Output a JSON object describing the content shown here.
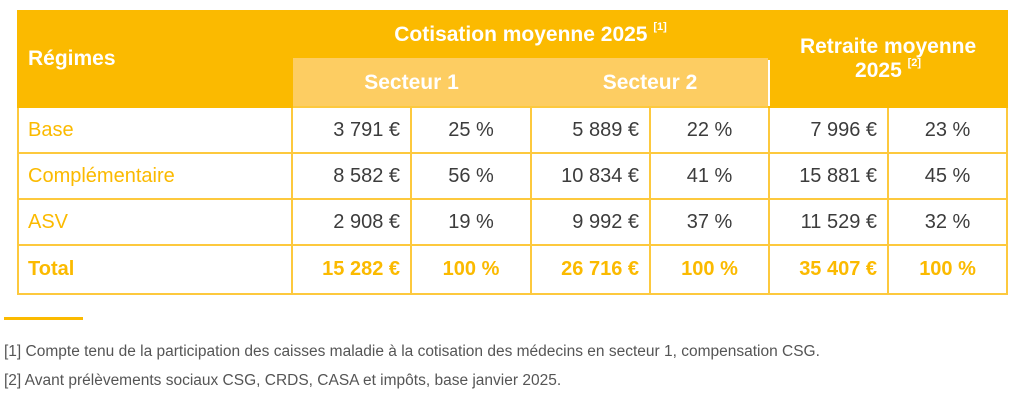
{
  "table": {
    "header": {
      "regimes": "Régimes",
      "cotisation": "Cotisation moyenne 2025",
      "cotisation_note": "[1]",
      "secteur1": "Secteur 1",
      "secteur2": "Secteur 2",
      "retraite_line1": "Retraite moyenne",
      "retraite_line2": "2025",
      "retraite_note": "[2]"
    },
    "rows": [
      {
        "label": "Base",
        "s1_amt": "3 791 €",
        "s1_pct": "25 %",
        "s2_amt": "5 889 €",
        "s2_pct": "22 %",
        "r_amt": "7 996 €",
        "r_pct": "23 %"
      },
      {
        "label": "Complémentaire",
        "s1_amt": "8 582 €",
        "s1_pct": "56 %",
        "s2_amt": "10 834 €",
        "s2_pct": "41 %",
        "r_amt": "15 881 €",
        "r_pct": "45 %"
      },
      {
        "label": "ASV",
        "s1_amt": "2 908 €",
        "s1_pct": "19 %",
        "s2_amt": "9 992 €",
        "s2_pct": "37 %",
        "r_amt": "11 529 €",
        "r_pct": "32 %"
      },
      {
        "label": "Total",
        "s1_amt": "15 282 €",
        "s1_pct": "100 %",
        "s2_amt": "26 716 €",
        "s2_pct": "100 %",
        "r_amt": "35 407 €",
        "r_pct": "100 %"
      }
    ]
  },
  "footnotes": [
    "[1] Compte tenu de la participation des caisses maladie à la cotisation des médecins en secteur 1, compensation CSG.",
    "[2] Avant prélèvements sociaux CSG, CRDS, CASA et impôts, base janvier 2025."
  ],
  "colors": {
    "accent": "#FBBA00",
    "accent_light": "#FDCD62",
    "text": "#3c3c3c"
  }
}
